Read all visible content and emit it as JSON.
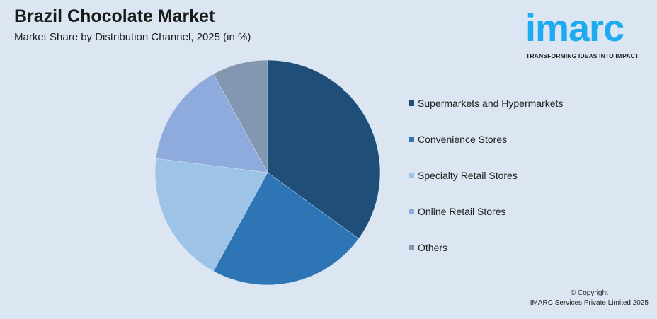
{
  "header": {
    "title": "Brazil Chocolate Market",
    "subtitle": "Market Share by Distribution Channel, 2025 (in %)"
  },
  "logo": {
    "text": "imarc",
    "tagline": "TRANSFORMING IDEAS INTO IMPACT",
    "color": "#1eaaf1"
  },
  "chart_data": {
    "type": "pie",
    "title": "Brazil Chocolate Market",
    "subtitle": "Market Share by Distribution Channel, 2025 (in %)",
    "categories": [
      "Supermarkets and Hypermarkets",
      "Convenience Stores",
      "Specialty Retail Stores",
      "Online Retail Stores",
      "Others"
    ],
    "values": [
      35,
      23,
      19,
      15,
      8
    ],
    "colors": [
      "#1f4e79",
      "#2e75b6",
      "#9dc3e6",
      "#8faadc",
      "#8497b0"
    ],
    "start": "top, clockwise",
    "legend": "right"
  },
  "footer": {
    "copyright": "© Copyright",
    "company": "IMARC Services Private Limited 2025"
  }
}
